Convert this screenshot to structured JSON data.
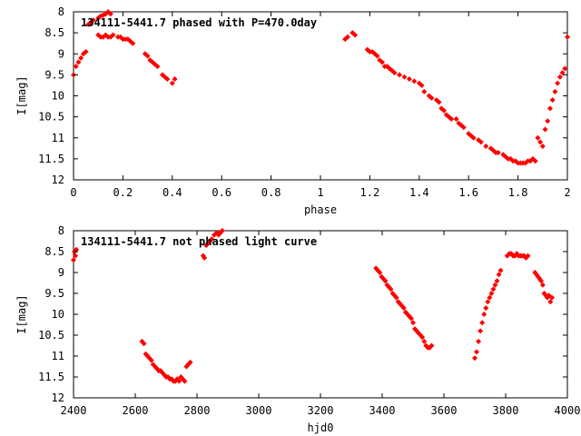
{
  "colors": {
    "points": "#ff0000",
    "frame": "#000000",
    "background": "#ffffff"
  },
  "chart_data": [
    {
      "type": "scatter",
      "title": "134111-5441.7 phased with P=470.0day",
      "xlabel": "phase",
      "ylabel": "I[mag]",
      "xlim": [
        0,
        2
      ],
      "ylim": [
        12,
        8
      ],
      "y_inverted": true,
      "grid": false,
      "legend": "none",
      "xticks": [
        "0",
        "0.2",
        "0.4",
        "0.6",
        "0.8",
        "1",
        "1.2",
        "1.4",
        "1.6",
        "1.8",
        "2"
      ],
      "yticks": [
        "8",
        "8.5",
        "9",
        "9.5",
        "10",
        "10.5",
        "11",
        "11.5",
        "12"
      ],
      "series": [
        {
          "x": [
            0.0,
            0.01,
            0.02,
            0.03,
            0.04,
            0.05,
            0.06,
            0.07,
            0.08,
            0.1,
            0.11,
            0.12,
            0.13,
            0.14,
            0.15,
            0.1,
            0.11,
            0.12,
            0.13,
            0.14,
            0.15,
            0.16,
            0.18,
            0.19,
            0.2,
            0.21,
            0.22,
            0.23,
            0.24,
            0.29,
            0.3,
            0.31,
            0.32,
            0.33,
            0.34,
            0.36,
            0.37,
            0.38,
            0.4,
            0.41,
            1.1,
            1.11,
            1.13,
            1.14,
            1.19,
            1.2,
            1.21,
            1.22,
            1.23,
            1.24,
            1.25,
            1.26,
            1.27,
            1.28,
            1.29,
            1.3,
            1.32,
            1.34,
            1.36,
            1.38,
            1.4,
            1.41,
            1.42,
            1.44,
            1.45,
            1.47,
            1.48,
            1.49,
            1.5,
            1.51,
            1.52,
            1.53,
            1.55,
            1.56,
            1.57,
            1.58,
            1.6,
            1.61,
            1.62,
            1.64,
            1.65,
            1.67,
            1.69,
            1.7,
            1.71,
            1.72,
            1.74,
            1.75,
            1.76,
            1.77,
            1.78,
            1.79,
            1.8,
            1.81,
            1.82,
            1.83,
            1.84,
            1.85,
            1.86,
            1.87,
            1.88,
            1.89,
            1.9,
            1.91,
            1.92,
            1.93,
            1.94,
            1.95,
            1.96,
            1.97,
            1.98,
            1.99,
            2.0
          ],
          "y": [
            9.5,
            9.3,
            9.2,
            9.1,
            9.0,
            8.95,
            8.3,
            8.25,
            8.2,
            8.15,
            8.1,
            8.08,
            8.05,
            8.0,
            8.05,
            8.55,
            8.6,
            8.6,
            8.55,
            8.6,
            8.6,
            8.55,
            8.6,
            8.6,
            8.65,
            8.65,
            8.65,
            8.7,
            8.75,
            9.0,
            9.05,
            9.15,
            9.2,
            9.25,
            9.3,
            9.5,
            9.55,
            9.6,
            9.7,
            9.6,
            8.65,
            8.6,
            8.5,
            8.55,
            8.9,
            8.95,
            8.95,
            9.0,
            9.05,
            9.15,
            9.2,
            9.3,
            9.3,
            9.35,
            9.4,
            9.45,
            9.5,
            9.55,
            9.6,
            9.65,
            9.7,
            9.75,
            9.9,
            10.0,
            10.05,
            10.1,
            10.15,
            10.3,
            10.35,
            10.45,
            10.5,
            10.55,
            10.55,
            10.65,
            10.7,
            10.75,
            10.9,
            10.95,
            11.0,
            11.05,
            11.1,
            11.2,
            11.25,
            11.3,
            11.35,
            11.35,
            11.4,
            11.45,
            11.5,
            11.5,
            11.55,
            11.55,
            11.6,
            11.6,
            11.6,
            11.6,
            11.55,
            11.55,
            11.5,
            11.55,
            11.0,
            11.1,
            11.2,
            10.8,
            10.6,
            10.3,
            10.1,
            9.9,
            9.7,
            9.55,
            9.45,
            9.35,
            8.6
          ]
        }
      ]
    },
    {
      "type": "scatter",
      "title": "134111-5441.7 not phased light curve",
      "xlabel": "hjd0",
      "ylabel": "I[mag]",
      "xlim": [
        2400,
        4000
      ],
      "ylim": [
        12,
        8
      ],
      "y_inverted": true,
      "grid": false,
      "legend": "none",
      "xticks": [
        "2400",
        "2600",
        "2800",
        "3000",
        "3200",
        "3400",
        "3600",
        "3800",
        "4000"
      ],
      "yticks": [
        "8",
        "8.5",
        "9",
        "9.5",
        "10",
        "10.5",
        "11",
        "11.5",
        "12"
      ],
      "series": [
        {
          "x": [
            2400,
            2403,
            2406,
            2409,
            2622,
            2628,
            2634,
            2640,
            2646,
            2652,
            2658,
            2664,
            2670,
            2676,
            2682,
            2688,
            2694,
            2700,
            2706,
            2712,
            2718,
            2724,
            2730,
            2736,
            2742,
            2748,
            2754,
            2760,
            2766,
            2772,
            2778,
            2820,
            2824,
            2830,
            2836,
            2842,
            2848,
            2856,
            2864,
            2870,
            2876,
            2882,
            3380,
            3386,
            3392,
            3398,
            3404,
            3410,
            3416,
            3422,
            3428,
            3434,
            3440,
            3446,
            3452,
            3458,
            3464,
            3470,
            3476,
            3482,
            3488,
            3494,
            3500,
            3506,
            3512,
            3518,
            3524,
            3530,
            3536,
            3542,
            3548,
            3554,
            3560,
            3700,
            3706,
            3712,
            3718,
            3724,
            3730,
            3736,
            3742,
            3748,
            3754,
            3760,
            3766,
            3772,
            3778,
            3784,
            3805,
            3812,
            3818,
            3824,
            3830,
            3836,
            3842,
            3848,
            3854,
            3860,
            3866,
            3872,
            3895,
            3900,
            3905,
            3910,
            3915,
            3920,
            3925,
            3930,
            3935,
            3940,
            3945,
            3950
          ],
          "y": [
            8.7,
            8.5,
            8.6,
            8.45,
            10.65,
            10.7,
            10.95,
            11.0,
            11.05,
            11.1,
            11.2,
            11.25,
            11.3,
            11.35,
            11.35,
            11.4,
            11.45,
            11.5,
            11.5,
            11.55,
            11.55,
            11.6,
            11.6,
            11.55,
            11.6,
            11.5,
            11.55,
            11.6,
            11.25,
            11.2,
            11.15,
            8.6,
            8.65,
            8.35,
            8.3,
            8.25,
            8.2,
            8.1,
            8.05,
            8.1,
            8.05,
            8.0,
            8.9,
            8.95,
            9.0,
            9.1,
            9.15,
            9.2,
            9.3,
            9.35,
            9.4,
            9.5,
            9.55,
            9.6,
            9.7,
            9.75,
            9.8,
            9.85,
            9.95,
            10.0,
            10.05,
            10.1,
            10.2,
            10.35,
            10.4,
            10.45,
            10.5,
            10.55,
            10.65,
            10.75,
            10.8,
            10.8,
            10.75,
            11.05,
            10.9,
            10.65,
            10.4,
            10.2,
            10.0,
            9.85,
            9.7,
            9.6,
            9.5,
            9.4,
            9.3,
            9.2,
            9.05,
            8.95,
            8.6,
            8.55,
            8.55,
            8.6,
            8.6,
            8.55,
            8.6,
            8.6,
            8.6,
            8.6,
            8.65,
            8.6,
            9.0,
            9.05,
            9.1,
            9.15,
            9.2,
            9.3,
            9.5,
            9.55,
            9.6,
            9.55,
            9.7,
            9.6
          ]
        }
      ]
    }
  ]
}
